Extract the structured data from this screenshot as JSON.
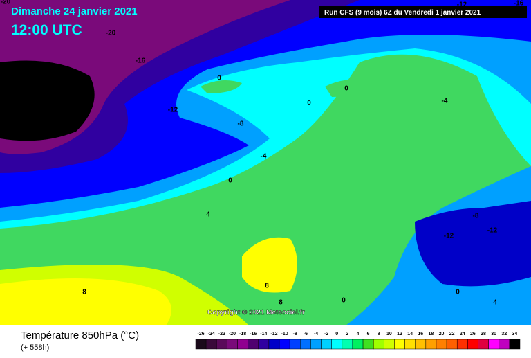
{
  "header": {
    "date": "Dimanche 24 janvier 2021",
    "time": "12:00 UTC",
    "run": "Run CFS (9 mois) 6Z du Vendredi 1 janvier 2021"
  },
  "map": {
    "contour_labels": [
      "-20",
      "-16",
      "-28",
      "-24",
      "-20",
      "-12",
      "-8",
      "-4",
      "0",
      "0",
      "0",
      "0",
      "-4",
      "-8",
      "-12",
      "-12",
      "4",
      "8",
      "8",
      "8",
      "0",
      "0",
      "4",
      "-12",
      "-16",
      "-20"
    ],
    "copyright": "Copyright © 2021 Meteociel.fr"
  },
  "footer": {
    "title": "Température 850hPa (°C)",
    "lead": "(+ 558h)"
  },
  "legend": {
    "ticks": [
      -26,
      -24,
      -22,
      -20,
      -18,
      -16,
      -14,
      -12,
      -10,
      -8,
      -6,
      -4,
      -2,
      0,
      2,
      4,
      6,
      8,
      10,
      12,
      14,
      16,
      18,
      20,
      22,
      24,
      26,
      28,
      30,
      32,
      34
    ],
    "colors": [
      "#1a0a1a",
      "#3a0a3a",
      "#5a0a5a",
      "#7a0a7a",
      "#900090",
      "#500070",
      "#3000a0",
      "#0000c8",
      "#0000ff",
      "#0040ff",
      "#0070ff",
      "#00a0ff",
      "#00d0ff",
      "#00ffff",
      "#00ffb0",
      "#00f060",
      "#40e020",
      "#a0ff00",
      "#d0ff00",
      "#ffff00",
      "#ffe000",
      "#ffc000",
      "#ffa000",
      "#ff8000",
      "#ff6000",
      "#ff3000",
      "#ff0000",
      "#e00040",
      "#ff00ff",
      "#c000c0",
      "#000000"
    ]
  }
}
